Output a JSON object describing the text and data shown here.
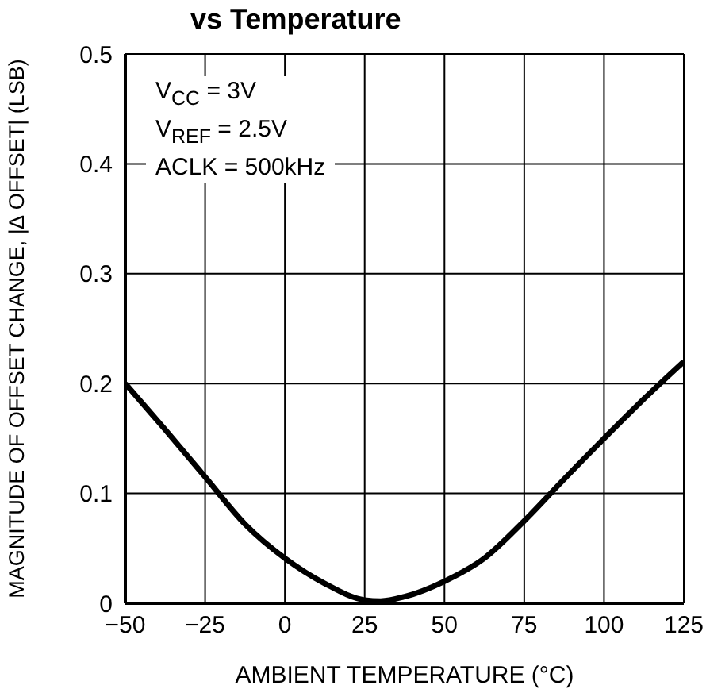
{
  "chart_data": {
    "type": "line",
    "title": "vs Temperature",
    "xlabel": "AMBIENT TEMPERATURE (°C)",
    "ylabel": "MAGNITUDE OF OFFSET CHANGE, |∆ OFFSET| (LSB)",
    "x": [
      -50,
      -37.5,
      -25,
      -12.5,
      0,
      12.5,
      25,
      30,
      37.5,
      50,
      62.5,
      75,
      87.5,
      100,
      112.5,
      125
    ],
    "series": [
      {
        "color": "#000000",
        "values": [
          0.2,
          0.158,
          0.115,
          0.072,
          0.041,
          0.018,
          0.003,
          0.002,
          0.006,
          0.02,
          0.041,
          0.075,
          0.113,
          0.15,
          0.186,
          0.22
        ]
      }
    ],
    "xlim": [
      -50,
      125
    ],
    "xticks": [
      -50,
      -25,
      0,
      25,
      50,
      75,
      100,
      125
    ],
    "ylim": [
      0,
      0.5
    ],
    "yticks": [
      0,
      0.1,
      0.2,
      0.3,
      0.4,
      0.5
    ],
    "grid": true,
    "marker": "none",
    "line_style": "solid",
    "annotations": [
      "V$_{CC}$ = 3V",
      "V$_{REF}$ = 2.5V",
      "ACLK = 500kHz"
    ]
  }
}
